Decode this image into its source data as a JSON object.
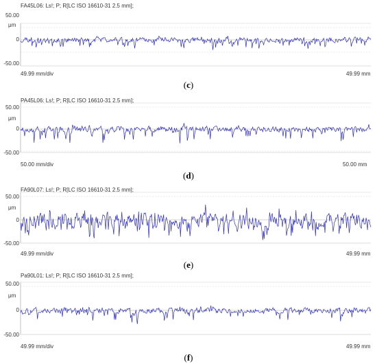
{
  "chart_data": [
    {
      "type": "line",
      "header": "FA45L06: Ls!; P; R[LC ISO 16610-31 2.5 mm];",
      "y_ticks": [
        "50.00",
        "0",
        "-50.00"
      ],
      "unit": "μm",
      "ylim": [
        -60,
        60
      ],
      "x_left_label": "49.99 mm/div",
      "x_right_label": "49.99 mm",
      "caption_pre": "(",
      "caption_letter": "c",
      "caption_post": ")",
      "series": [
        {
          "color": "#2a2ac8",
          "seed": 11,
          "amp_up": 14,
          "amp_down": 32,
          "spike_rate": 0.18
        }
      ]
    },
    {
      "type": "line",
      "header": "PA45L06: Ls!; P; R[LC ISO 16610-31 2.5 mm];",
      "y_ticks": [
        "50.00",
        "0",
        "-50.00"
      ],
      "unit": "μm",
      "ylim": [
        -60,
        60
      ],
      "x_left_label": "50.00 mm/div",
      "x_right_label": "50.00 mm",
      "caption_pre": "(",
      "caption_letter": "d",
      "caption_post": ")",
      "series": [
        {
          "color": "#2a2ac8",
          "seed": 23,
          "amp_up": 9,
          "amp_down": 28,
          "spike_rate": 0.1
        }
      ]
    },
    {
      "type": "line",
      "header": "FA90L07: Ls!; P; R[LC ISO 16610-31 2.5 mm];",
      "y_ticks": [
        "50.00",
        "0",
        "-50.00"
      ],
      "unit": "μm",
      "ylim": [
        -60,
        60
      ],
      "x_left_label": "49.99 mm/div",
      "x_right_label": "49.99 mm",
      "caption_pre": "(",
      "caption_letter": "e",
      "caption_post": ")",
      "series": [
        {
          "color": "#2a2ac8",
          "seed": 37,
          "amp_up": 22,
          "amp_down": 30,
          "spike_rate": 0.22
        }
      ]
    },
    {
      "type": "line",
      "header": "Pa90L01: Ls!; P; R[LC ISO 16610-31 2.5 mm];",
      "y_ticks": [
        "50.00",
        "0",
        "-50.00"
      ],
      "unit": "μm",
      "ylim": [
        -60,
        60
      ],
      "x_left_label": "49.99 mm/div",
      "x_right_label": "49.99 mm",
      "caption_pre": "(",
      "caption_letter": "f",
      "caption_post": ")",
      "series": [
        {
          "color": "#2a2ac8",
          "seed": 53,
          "amp_up": 8,
          "amp_down": 26,
          "spike_rate": 0.12
        }
      ]
    }
  ]
}
